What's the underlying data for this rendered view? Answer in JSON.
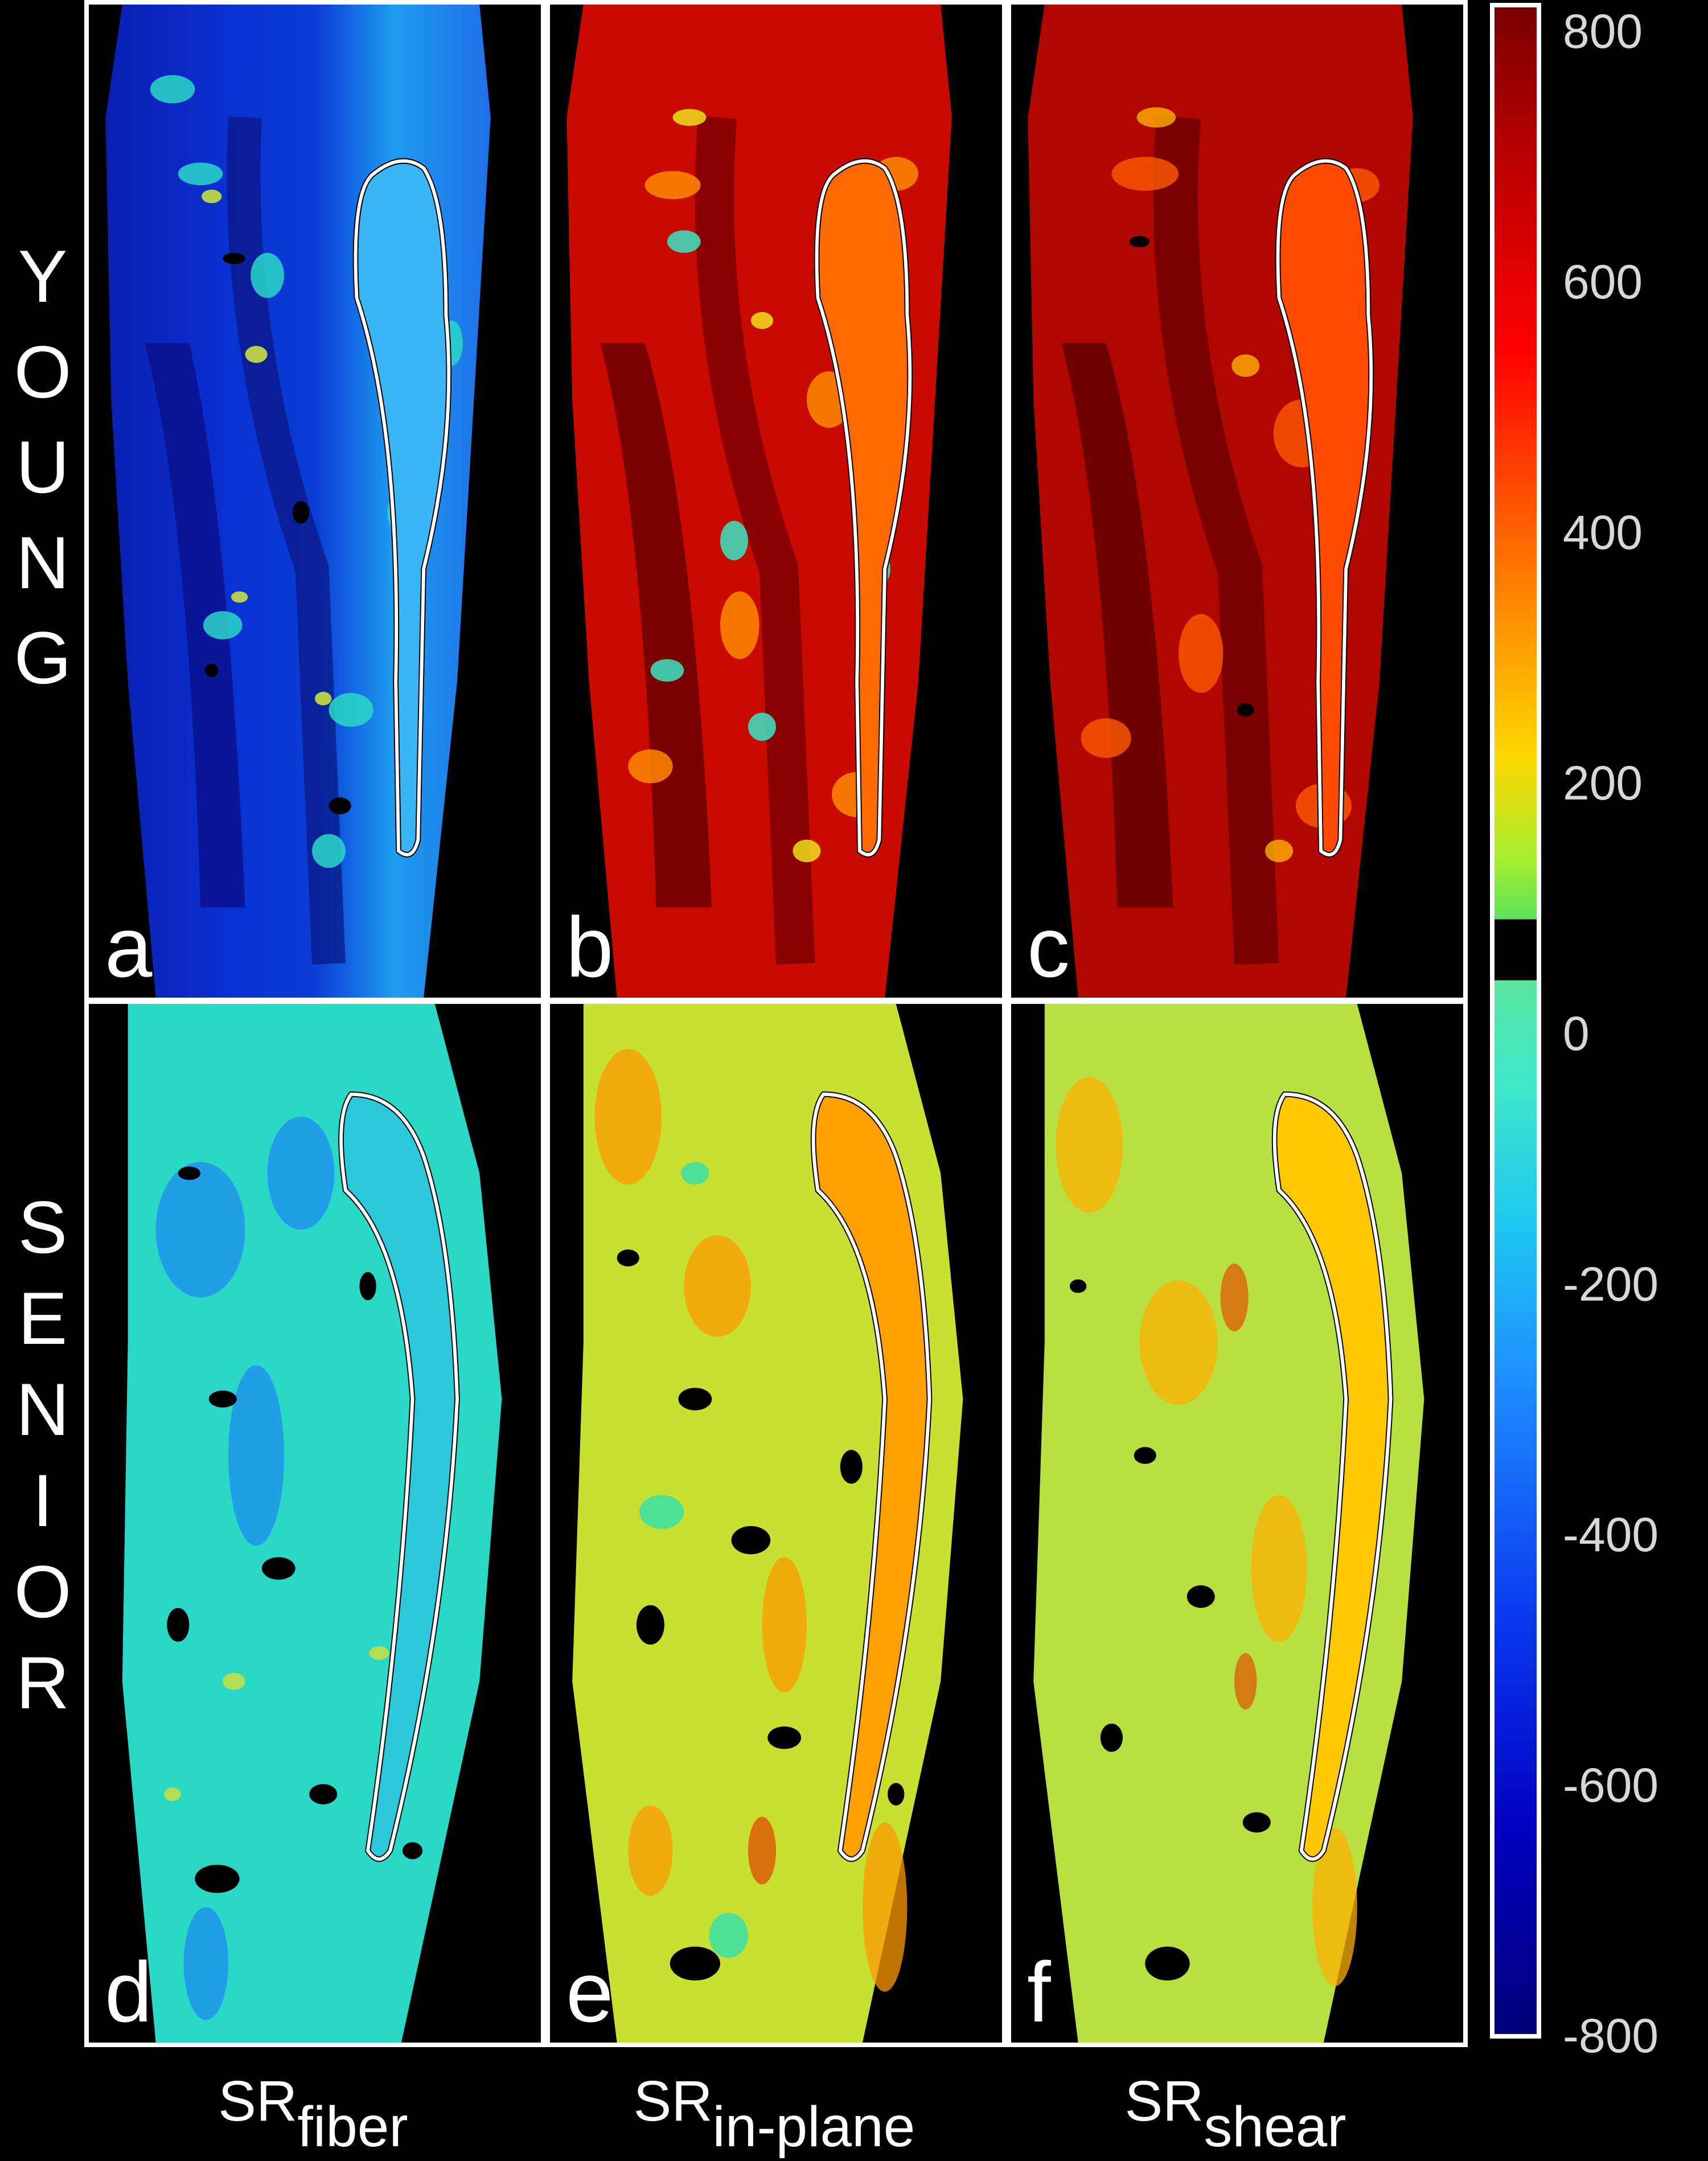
{
  "rows": {
    "young": [
      "Y",
      "O",
      "U",
      "N",
      "G"
    ],
    "senior": [
      "S",
      "E",
      "N",
      "I",
      "O",
      "R"
    ]
  },
  "panels": [
    {
      "letter": "a",
      "row": "young",
      "col": "fiber"
    },
    {
      "letter": "b",
      "row": "young",
      "col": "in-plane"
    },
    {
      "letter": "c",
      "row": "young",
      "col": "shear"
    },
    {
      "letter": "d",
      "row": "senior",
      "col": "fiber"
    },
    {
      "letter": "e",
      "row": "senior",
      "col": "in-plane"
    },
    {
      "letter": "f",
      "row": "senior",
      "col": "shear"
    }
  ],
  "columns": [
    {
      "base": "SR",
      "sub": "fiber"
    },
    {
      "base": "SR",
      "sub": "in-plane"
    },
    {
      "base": "SR",
      "sub": "shear"
    }
  ],
  "colorbar": {
    "ticks": [
      "800",
      "600",
      "400",
      "200",
      "0",
      "-200",
      "-400",
      "-600",
      "-800"
    ],
    "range": [
      -800,
      800
    ],
    "colors": {
      "max": "#7a0000",
      "high": "#ff0000",
      "mid_high": "#ffd800",
      "zero": "#000000",
      "mid_low": "#40e8c8",
      "low": "#0a3cf0",
      "min": "#000078"
    }
  }
}
